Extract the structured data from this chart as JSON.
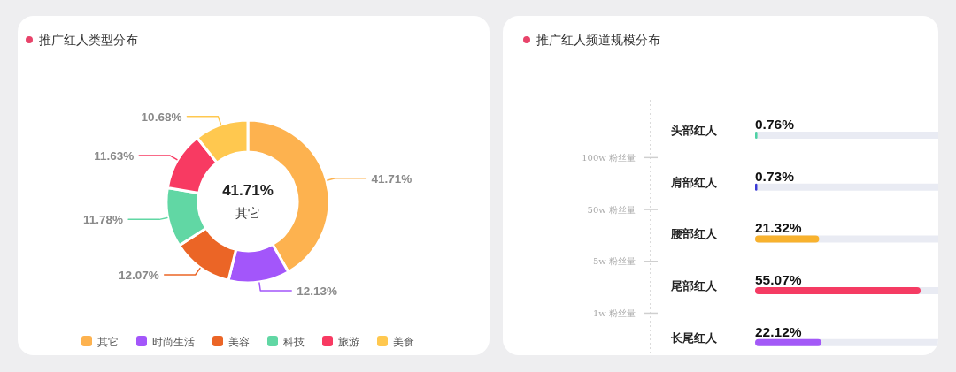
{
  "chart_data": [
    {
      "type": "donut",
      "title": "推广红人类型分布",
      "categories": [
        "其它",
        "时尚生活",
        "美容",
        "科技",
        "旅游",
        "美食"
      ],
      "values": [
        41.71,
        12.13,
        12.07,
        11.78,
        11.63,
        10.68
      ],
      "colors": [
        "#fdb24f",
        "#a356fa",
        "#eb6526",
        "#61d7a4",
        "#f83a62",
        "#ffc84f"
      ],
      "value_labels": [
        "41.71%",
        "12.13%",
        "12.07%",
        "11.78%",
        "11.63%",
        "10.68%"
      ],
      "annotations": [
        "41.71%",
        "其它"
      ],
      "legend": "bottom"
    },
    {
      "type": "bar",
      "orientation": "horizontal",
      "title": "推广红人频道规模分布",
      "categories": [
        "头部红人",
        "肩部红人",
        "腰部红人",
        "尾部红人",
        "长尾红人"
      ],
      "values": [
        0.76,
        0.73,
        21.32,
        55.07,
        22.12
      ],
      "colors": [
        "#4fd1a5",
        "#3a3ad6",
        "#f8b22e",
        "#f53b63",
        "#a359f7"
      ],
      "value_labels": [
        "0.76%",
        "0.73%",
        "21.32%",
        "55.07%",
        "22.12%"
      ],
      "annotations": [
        "100w 粉丝量",
        "50w 粉丝量",
        "5w 粉丝量",
        "1w 粉丝量"
      ]
    }
  ]
}
